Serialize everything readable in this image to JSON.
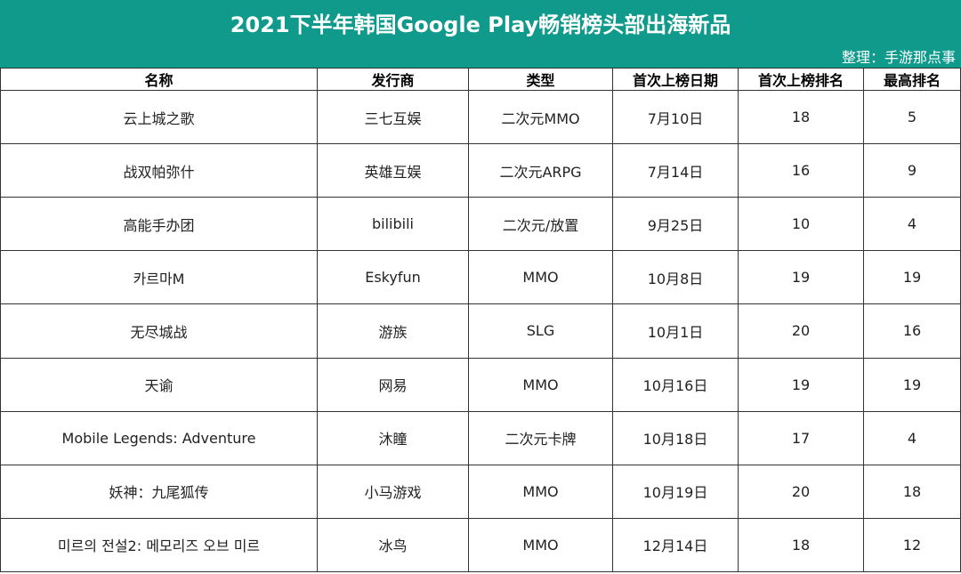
{
  "header": {
    "title": "2021下半年韩国Google Play畅销榜头部出海新品",
    "subtitle": "整理：手游那点事"
  },
  "table": {
    "columns": [
      "名称",
      "发行商",
      "类型",
      "首次上榜日期",
      "首次上榜排名",
      "最高排名"
    ],
    "rows": [
      [
        "云上城之歌",
        "三七互娱",
        "二次元MMO",
        "7月10日",
        18,
        5
      ],
      [
        "战双帕弥什",
        "英雄互娱",
        "二次元ARPG",
        "7月14日",
        16,
        9
      ],
      [
        "高能手办团",
        "bilibili",
        "二次元/放置",
        "9月25日",
        10,
        4
      ],
      [
        "카르마M",
        "Eskyfun",
        "MMO",
        "10月8日",
        19,
        19
      ],
      [
        "无尽城战",
        "游族",
        "SLG",
        "10月1日",
        20,
        16
      ],
      [
        "天谕",
        "网易",
        "MMO",
        "10月16日",
        19,
        19
      ],
      [
        "Mobile Legends: Adventure",
        "沐瞳",
        "二次元卡牌",
        "10月18日",
        17,
        4
      ],
      [
        "妖神：九尾狐传",
        "小马游戏",
        "MMO",
        "10月19日",
        20,
        18
      ],
      [
        "미르의 전설2: 메모리즈 오브 미르",
        "冰鸟",
        "MMO",
        "12月14日",
        18,
        12
      ]
    ]
  }
}
